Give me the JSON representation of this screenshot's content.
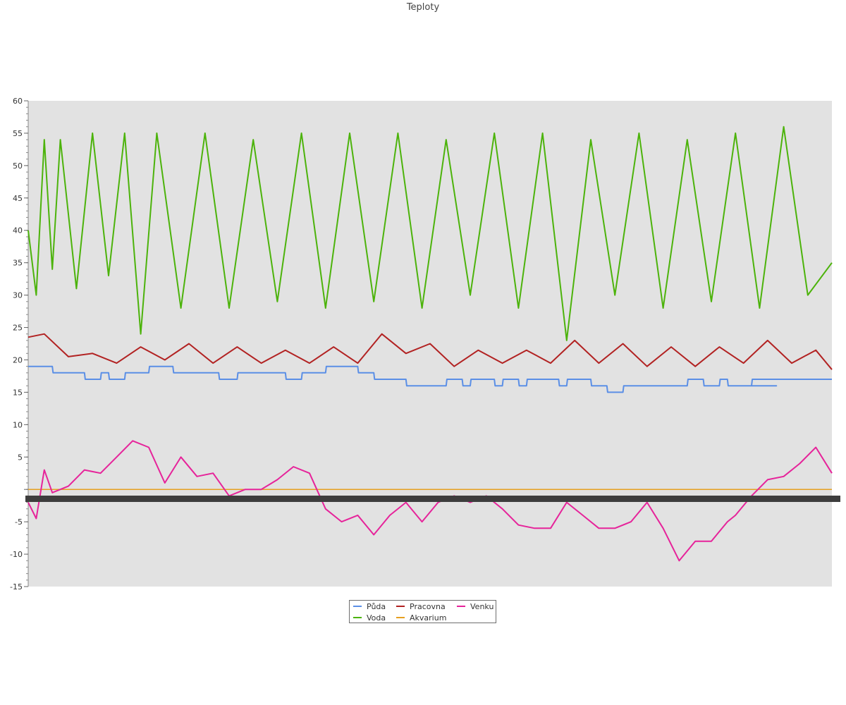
{
  "chart_data": {
    "type": "line",
    "title": "Teploty",
    "xlabel": "",
    "ylabel": "",
    "ylim": [
      -15,
      60
    ],
    "yticks": [
      60,
      55,
      50,
      45,
      40,
      35,
      30,
      25,
      20,
      15,
      10,
      5,
      "",
      -5,
      -10,
      -15
    ],
    "grid": false,
    "legend_position": "bottom-center",
    "background": "#e2e2e2",
    "series": [
      {
        "name": "Půda",
        "color": "#5b8fe6",
        "x": [
          0,
          0.03,
          0.031,
          0.07,
          0.071,
          0.09,
          0.091,
          0.1,
          0.101,
          0.12,
          0.121,
          0.15,
          0.151,
          0.18,
          0.181,
          0.237,
          0.238,
          0.26,
          0.261,
          0.32,
          0.321,
          0.34,
          0.341,
          0.37,
          0.371,
          0.41,
          0.411,
          0.43,
          0.431,
          0.45,
          0.451,
          0.47,
          0.471,
          0.5,
          0.501,
          0.52,
          0.521,
          0.54,
          0.541,
          0.55,
          0.551,
          0.58,
          0.581,
          0.59,
          0.591,
          0.61,
          0.611,
          0.62,
          0.621,
          0.66,
          0.661,
          0.67,
          0.671,
          0.7,
          0.701,
          0.72,
          0.721,
          0.74,
          0.741,
          0.77,
          0.771,
          0.8,
          0.801,
          0.82,
          0.821,
          0.84,
          0.841,
          0.86,
          0.861,
          0.87,
          0.871,
          0.9,
          0.901,
          0.93,
          0.931,
          0.9,
          0.901,
          1.0
        ],
        "y": [
          19,
          19,
          18,
          18,
          17,
          17,
          18,
          18,
          17,
          17,
          18,
          18,
          19,
          19,
          18,
          18,
          17,
          17,
          18,
          18,
          17,
          17,
          18,
          18,
          19,
          19,
          18,
          18,
          17,
          17,
          17,
          17,
          16,
          16,
          16,
          16,
          17,
          17,
          16,
          16,
          17,
          17,
          16,
          16,
          17,
          17,
          16,
          16,
          17,
          17,
          16,
          16,
          17,
          17,
          16,
          16,
          15,
          15,
          16,
          16,
          16,
          16,
          16,
          16,
          17,
          17,
          16,
          16,
          17,
          17,
          16,
          16,
          16,
          16,
          16,
          16,
          17,
          17
        ]
      },
      {
        "name": "Voda",
        "color": "#4cb30b",
        "x": [
          0,
          0.01,
          0.02,
          0.03,
          0.04,
          0.06,
          0.08,
          0.1,
          0.12,
          0.14,
          0.16,
          0.19,
          0.22,
          0.25,
          0.28,
          0.31,
          0.34,
          0.37,
          0.4,
          0.43,
          0.46,
          0.49,
          0.52,
          0.55,
          0.58,
          0.61,
          0.64,
          0.67,
          0.7,
          0.73,
          0.76,
          0.79,
          0.82,
          0.85,
          0.88,
          0.91,
          0.94,
          0.97,
          1.0
        ],
        "y": [
          40,
          30,
          54,
          34,
          54,
          31,
          55,
          33,
          55,
          24,
          55,
          28,
          55,
          28,
          54,
          29,
          55,
          28,
          55,
          29,
          55,
          28,
          54,
          30,
          55,
          28,
          55,
          23,
          54,
          30,
          55,
          28,
          54,
          29,
          55,
          28,
          56,
          30,
          35
        ]
      },
      {
        "name": "Pracovna",
        "color": "#b22222",
        "x": [
          0,
          0.02,
          0.05,
          0.08,
          0.11,
          0.14,
          0.17,
          0.2,
          0.23,
          0.26,
          0.29,
          0.32,
          0.35,
          0.38,
          0.41,
          0.44,
          0.47,
          0.5,
          0.53,
          0.56,
          0.59,
          0.62,
          0.65,
          0.68,
          0.71,
          0.74,
          0.77,
          0.8,
          0.83,
          0.86,
          0.89,
          0.92,
          0.95,
          0.98,
          1.0
        ],
        "y": [
          23.5,
          24,
          20.5,
          21,
          19.5,
          22,
          20,
          22.5,
          19.5,
          22,
          19.5,
          21.5,
          19.5,
          22,
          19.5,
          24,
          21,
          22.5,
          19,
          21.5,
          19.5,
          21.5,
          19.5,
          23,
          19.5,
          22.5,
          19,
          22,
          19,
          22,
          19.5,
          23,
          19.5,
          21.5,
          18.5
        ]
      },
      {
        "name": "Akvarium",
        "color": "#e6a020",
        "x": [
          0,
          1
        ],
        "y": [
          0,
          0
        ]
      },
      {
        "name": "Venku",
        "color": "#e6239a",
        "x": [
          0,
          0.01,
          0.02,
          0.03,
          0.05,
          0.07,
          0.09,
          0.11,
          0.13,
          0.15,
          0.17,
          0.19,
          0.21,
          0.23,
          0.25,
          0.27,
          0.29,
          0.31,
          0.33,
          0.35,
          0.37,
          0.39,
          0.41,
          0.43,
          0.45,
          0.47,
          0.49,
          0.51,
          0.53,
          0.55,
          0.57,
          0.59,
          0.61,
          0.63,
          0.65,
          0.67,
          0.69,
          0.71,
          0.73,
          0.75,
          0.77,
          0.79,
          0.81,
          0.83,
          0.85,
          0.87,
          0.88,
          0.9,
          0.92,
          0.94,
          0.96,
          0.98,
          1.0
        ],
        "y": [
          -2,
          -4.5,
          3,
          -0.5,
          0.5,
          3,
          2.5,
          5,
          7.5,
          6.5,
          1,
          5,
          2,
          2.5,
          -1,
          0,
          0,
          1.5,
          3.5,
          2.5,
          -3,
          -5,
          -4,
          -7,
          -4,
          -2,
          -5,
          -2,
          -1,
          -2,
          -1,
          -3,
          -5.5,
          -6,
          -6,
          -2,
          -4,
          -6,
          -6,
          -5,
          -2,
          -6,
          -11,
          -8,
          -8,
          -5,
          -4,
          -1,
          1.5,
          2,
          4,
          6.5,
          2.5
        ]
      }
    ]
  }
}
